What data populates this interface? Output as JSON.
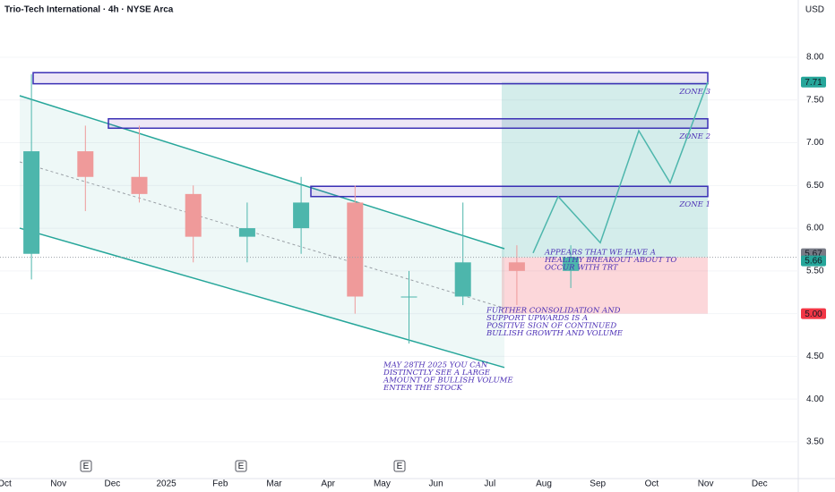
{
  "chart_data": {
    "type": "candlestick",
    "title": "Trio-Tech International · 4h · NYSE Arca",
    "currency": "USD",
    "categories": [
      "Oct",
      "Nov",
      "Dec",
      "2025",
      "Feb",
      "Mar",
      "Apr",
      "May",
      "Jun",
      "Jul",
      "Aug",
      "Sep",
      "Oct",
      "Nov",
      "Dec"
    ],
    "up_color": "#4db6ac",
    "down_color": "#ef9a9a",
    "open": [
      5.7,
      6.9,
      6.6,
      6.4,
      5.9,
      6.0,
      6.3,
      5.2,
      5.2,
      5.6,
      5.5,
      null,
      null,
      null,
      null
    ],
    "high": [
      7.8,
      7.2,
      7.2,
      6.5,
      6.3,
      6.6,
      6.5,
      5.5,
      6.3,
      5.8,
      5.8,
      null,
      null,
      null,
      null
    ],
    "low": [
      5.4,
      6.2,
      6.3,
      5.6,
      5.6,
      5.7,
      5.0,
      4.65,
      5.1,
      5.1,
      5.3,
      null,
      null,
      null,
      null
    ],
    "close": [
      6.9,
      6.6,
      6.4,
      5.9,
      6.0,
      6.3,
      5.2,
      5.2,
      5.6,
      5.5,
      5.66,
      null,
      null,
      null,
      null
    ],
    "ylim": [
      3.07,
      8.67
    ],
    "yticks": [
      {
        "value": 8,
        "label": "8.00"
      },
      {
        "value": 7.5,
        "label": "7.50"
      },
      {
        "value": 7,
        "label": "7.00"
      },
      {
        "value": 6.5,
        "label": "6.50"
      },
      {
        "value": 6,
        "label": "6.00"
      },
      {
        "value": 5.5,
        "label": "5.50"
      },
      {
        "value": 5,
        "label": "5.00"
      },
      {
        "value": 4.5,
        "label": "4.50"
      },
      {
        "value": 4,
        "label": "4.00"
      },
      {
        "value": 3.5,
        "label": "3.50"
      }
    ],
    "grid": true,
    "earnings": [
      "E",
      "E",
      "E"
    ],
    "channel": {
      "upper": [
        7.55,
        5.76
      ],
      "lower": [
        6.0,
        4.37
      ],
      "color": "#26a69a"
    },
    "zones": [
      {
        "label": "ZONE 3",
        "top": 7.82,
        "bottom": 7.69
      },
      {
        "label": "ZONE 2",
        "top": 7.28,
        "bottom": 7.17
      },
      {
        "label": "ZONE 1",
        "top": 6.49,
        "bottom": 6.37
      }
    ],
    "position": {
      "entry": 5.66,
      "target": 7.71,
      "stop": 5.0
    },
    "projection": [
      5.71,
      6.37,
      5.83,
      7.14,
      6.53,
      7.71
    ],
    "price_markers": [
      {
        "value": 7.71,
        "color": "#26a69a"
      },
      {
        "value": 5.67,
        "color": "#787b86"
      },
      {
        "value": 5.66,
        "color": "#26a69a"
      },
      {
        "value": 5,
        "label": "5.00",
        "color": "#f23645"
      }
    ],
    "annotations": [
      {
        "lines": [
          "APPEARS THAT WE HAVE A",
          "HEALTHY BREAKOUT ABOUT TO",
          "OCCUR WITH TRT"
        ]
      },
      {
        "lines": [
          "FURTHER CONSOLIDATION AND",
          "SUPPORT UPWARDS IS A",
          "POSITIVE SIGN OF CONTINUED",
          "BULLISH GROWTH AND VOLUME"
        ]
      },
      {
        "lines": [
          "MAY 28TH 2025 YOU CAN",
          "DISTINCTLY SEE A LARGE",
          "AMOUNT OF BULLISH VOLUME",
          "ENTER THE STOCK"
        ]
      }
    ]
  }
}
